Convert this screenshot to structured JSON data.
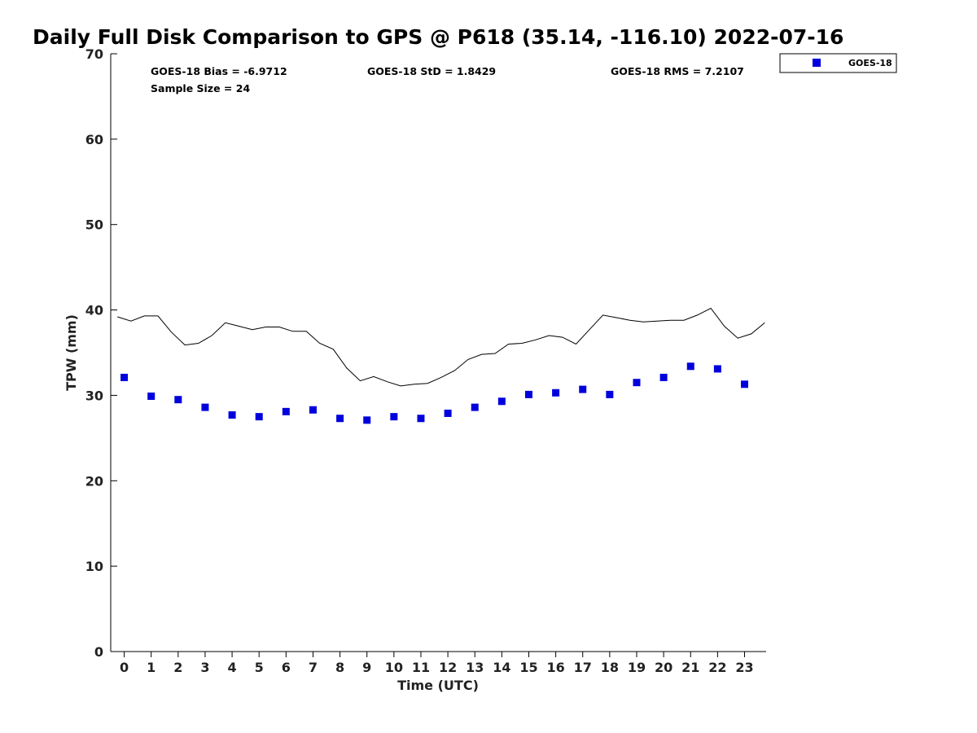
{
  "chart_data": {
    "type": "scatter",
    "title": "Daily Full Disk Comparison to GPS @ P618 (35.14, -116.10) 2022-07-16",
    "xlabel": "Time (UTC)",
    "ylabel": "TPW (mm)",
    "xlim": [
      -0.5,
      23.8
    ],
    "ylim": [
      0,
      70
    ],
    "x_ticks": [
      "0",
      "1",
      "2",
      "3",
      "4",
      "5",
      "6",
      "7",
      "8",
      "9",
      "10",
      "11",
      "12",
      "13",
      "14",
      "15",
      "16",
      "17",
      "18",
      "19",
      "20",
      "21",
      "22",
      "23"
    ],
    "y_ticks": [
      "0",
      "10",
      "20",
      "30",
      "40",
      "50",
      "60",
      "70"
    ],
    "grid": false,
    "legend_position": "top-right outside",
    "stats": {
      "bias": "GOES-18 Bias = -6.9712",
      "std": "GOES-18 StD = 1.8429",
      "rms": "GOES-18 RMS = 7.2107",
      "sample": "Sample Size = 24"
    },
    "series": [
      {
        "name": "GOES-18",
        "kind": "markers",
        "color": "#0000dd",
        "x": [
          0,
          1,
          2,
          3,
          4,
          5,
          6,
          7,
          8,
          9,
          10,
          11,
          12,
          13,
          14,
          15,
          16,
          17,
          18,
          19,
          20,
          21,
          22,
          23
        ],
        "values": [
          32.1,
          29.9,
          29.5,
          28.6,
          27.7,
          27.5,
          28.1,
          28.3,
          27.3,
          27.1,
          27.5,
          27.3,
          27.9,
          28.6,
          29.3,
          30.1,
          30.3,
          30.7,
          30.1,
          31.5,
          32.1,
          33.4,
          33.1,
          31.3
        ]
      },
      {
        "kind": "line",
        "color": "#000000",
        "x": [
          -0.25,
          0.25,
          0.75,
          1.25,
          1.75,
          2.25,
          2.75,
          3.25,
          3.75,
          4.25,
          4.75,
          5.25,
          5.75,
          6.25,
          6.75,
          7.25,
          7.75,
          8.25,
          8.75,
          9.25,
          9.75,
          10.25,
          10.75,
          11.25,
          11.75,
          12.25,
          12.75,
          13.25,
          13.75,
          14.25,
          14.75,
          15.25,
          15.75,
          16.25,
          16.75,
          17.25,
          17.75,
          18.25,
          18.75,
          19.25,
          19.75,
          20.25,
          20.75,
          21.25,
          21.75,
          22.25,
          22.75,
          23.25,
          23.75
        ],
        "values": [
          39.2,
          38.7,
          39.3,
          39.3,
          37.4,
          35.9,
          36.1,
          37.0,
          38.5,
          38.1,
          37.7,
          38.0,
          38.0,
          37.5,
          37.5,
          36.1,
          35.4,
          33.2,
          31.7,
          32.2,
          31.6,
          31.1,
          31.3,
          31.4,
          32.1,
          32.9,
          34.2,
          34.8,
          34.9,
          36.0,
          36.1,
          36.5,
          37.0,
          36.8,
          36.0,
          37.7,
          39.4,
          39.1,
          38.8,
          38.6,
          38.7,
          38.8,
          38.8,
          39.4,
          40.2,
          38.1,
          36.7,
          37.2,
          38.5
        ]
      }
    ]
  }
}
